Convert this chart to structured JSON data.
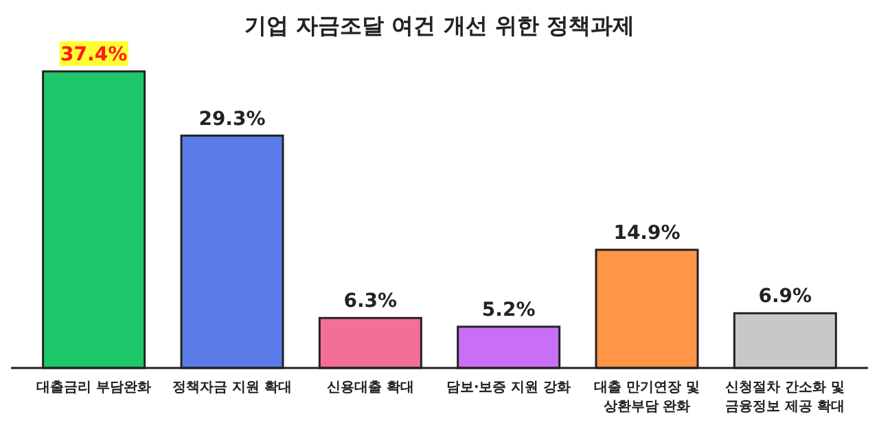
{
  "chart_data": {
    "type": "bar",
    "title": "기업 자금조달 여건 개선 위한 정책과제",
    "categories": [
      "대출금리 부담완화",
      "정책자금 지원 확대",
      "신용대출 확대",
      "담보·보증 지원 강화",
      "대출 만기연장 및 상환부담 완화",
      "신청절차 간소화 및 금융정보 제공 확대"
    ],
    "values": [
      37.4,
      29.3,
      6.3,
      5.2,
      14.9,
      6.9
    ],
    "colors": [
      "#1ec86a",
      "#5b7be8",
      "#f46f97",
      "#c96ff6",
      "#ff9547",
      "#c8c8c8"
    ],
    "value_labels": [
      "37.4%",
      "29.3%",
      "6.3%",
      "5.2%",
      "14.9%",
      "6.9%"
    ]
  }
}
